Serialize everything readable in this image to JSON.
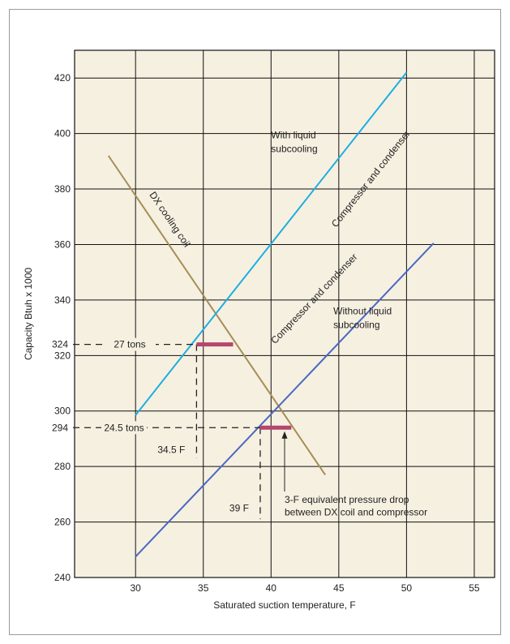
{
  "chart_data": {
    "type": "line",
    "xlabel": "Saturated suction temperature, F",
    "ylabel": "Capacity Btuh x 1000",
    "xlim": [
      25.5,
      56.5
    ],
    "ylim": [
      240,
      430
    ],
    "x_ticks": [
      "30",
      "35",
      "40",
      "45",
      "50",
      "55"
    ],
    "y_ticks": [
      "240",
      "260",
      "280",
      "300",
      "320",
      "340",
      "360",
      "380",
      "400",
      "420"
    ],
    "grid": true,
    "series": [
      {
        "name": "DX cooling coil",
        "x": [
          28,
          44
        ],
        "y": [
          392,
          277
        ]
      },
      {
        "name": "Compressor and condenser",
        "condition": "With liquid subcooling",
        "x": [
          30,
          50
        ],
        "y": [
          298.5,
          422
        ]
      },
      {
        "name": "Compressor and condenser",
        "condition": "Without liquid subcooling",
        "x": [
          30,
          52
        ],
        "y": [
          247.5,
          360.5
        ]
      }
    ],
    "operating_points": [
      {
        "capacity_label": "324",
        "tons_label": "27 tons",
        "temp_label": "34.5 F",
        "x": 34.5,
        "y": 324,
        "bar_x": [
          34.5,
          37.2
        ]
      },
      {
        "capacity_label": "294",
        "tons_label": "24.5 tons",
        "temp_label": "39 F",
        "x": 39.2,
        "y": 294,
        "bar_x": [
          39.2,
          41.5
        ]
      }
    ],
    "line_labels": {
      "dx": "DX cooling coil",
      "with_comp": "Compressor and condenser",
      "with_text": [
        "With liquid",
        "subcooling"
      ],
      "without_comp": "Compressor and condenser",
      "without_text": [
        "Without liquid",
        "subcooling"
      ]
    },
    "annotation": [
      "3-F equivalent pressure drop",
      "between DX coil and compressor"
    ],
    "colors": {
      "dx": "#a68d55",
      "with": "#1eaee0",
      "without": "#4a68c2",
      "bar": "#b5466e",
      "grid": "#111111",
      "plot_bg": "#f6f0e1"
    }
  }
}
